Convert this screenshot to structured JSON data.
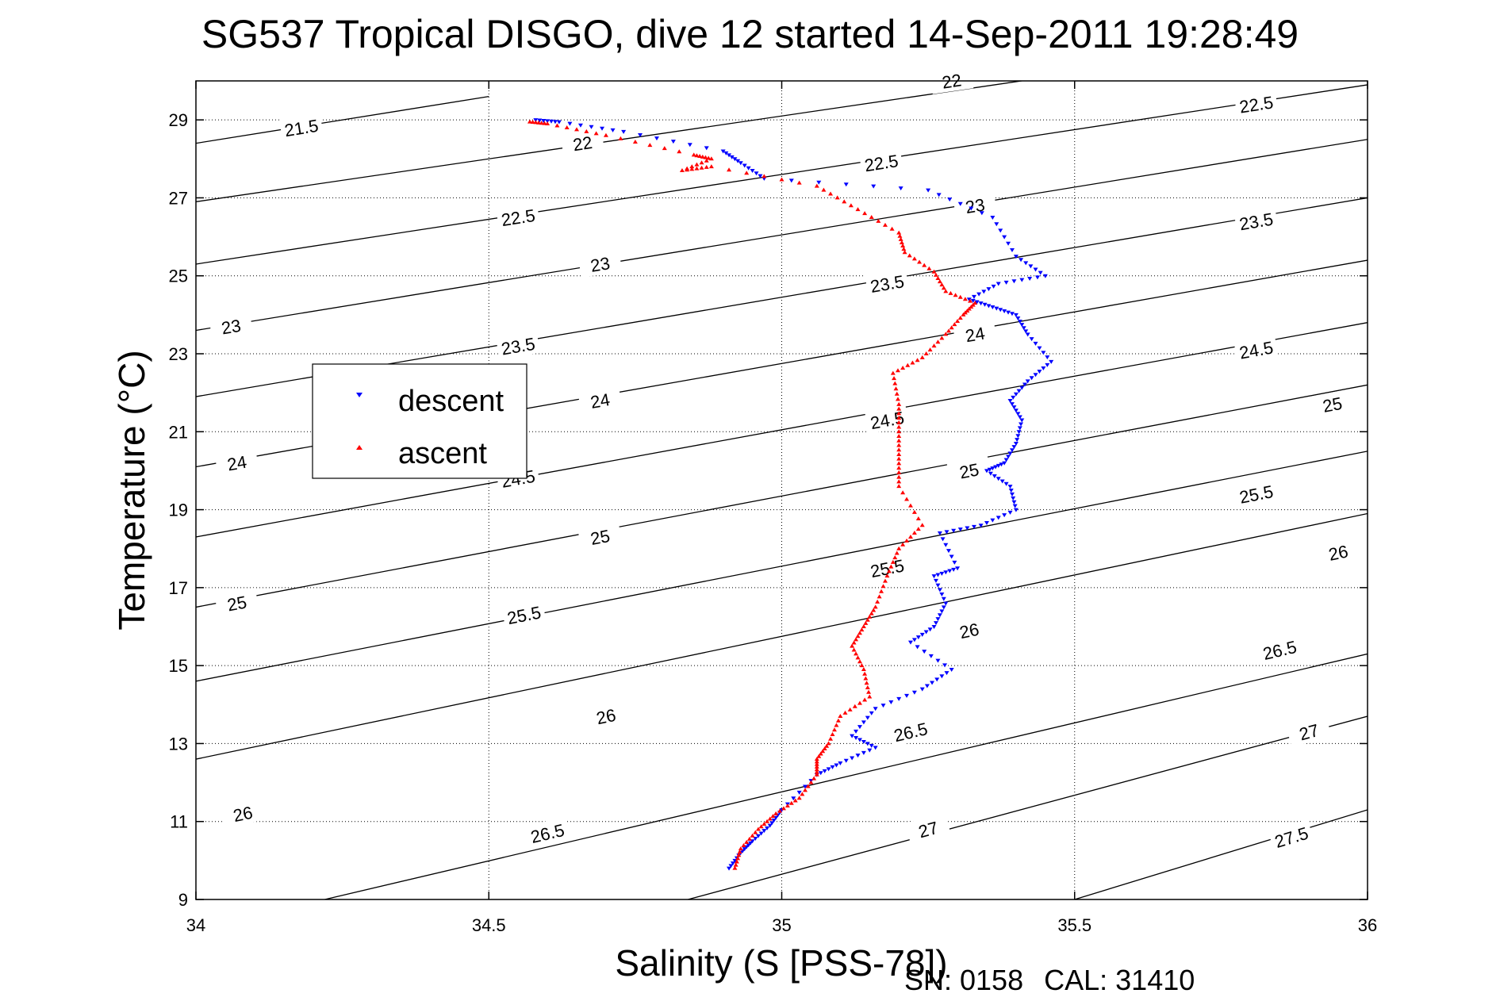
{
  "title": "SG537 Tropical DISGO, dive 12 started 14-Sep-2011 19:28:49",
  "footer": {
    "sn": "SN: 0158",
    "cal": "CAL: 31410"
  },
  "colors": {
    "descent": "#0000ff",
    "ascent": "#ff0000",
    "axis": "#000000",
    "grid": "#000000"
  },
  "chart_data": {
    "type": "scatter",
    "title": "SG537 Tropical DISGO, dive 12 started 14-Sep-2011 19:28:49",
    "xlabel": "Salinity (S [PSS-78])",
    "ylabel": "Temperature (°C)",
    "xlim": [
      34,
      36
    ],
    "ylim": [
      9,
      30
    ],
    "x_ticks": [
      34,
      34.5,
      35,
      35.5,
      36
    ],
    "x_tick_labels": [
      "34",
      "34.5",
      "35",
      "35.5",
      "36"
    ],
    "y_ticks": [
      9,
      11,
      13,
      15,
      17,
      19,
      21,
      23,
      25,
      27,
      29
    ],
    "y_tick_labels": [
      "9",
      "11",
      "13",
      "15",
      "17",
      "19",
      "21",
      "23",
      "25",
      "27",
      "29"
    ],
    "grid": true,
    "legend": {
      "position": "left",
      "entries": [
        "descent",
        "ascent"
      ]
    },
    "contours": [
      {
        "level": "21.5",
        "points": [
          [
            34,
            28.4
          ],
          [
            34.5,
            29.6
          ]
        ],
        "label_at": [
          34.18,
          28.8
        ]
      },
      {
        "level": "22",
        "points": [
          [
            34,
            26.9
          ],
          [
            36,
            31.3
          ]
        ],
        "label_at": [
          34.66,
          28.4
        ]
      },
      {
        "level": "22",
        "points": [
          [
            34,
            26.9
          ],
          [
            36,
            31.3
          ]
        ],
        "label_at": [
          35.29,
          30.0
        ]
      },
      {
        "level": "22.5",
        "points": [
          [
            34,
            25.3
          ],
          [
            36,
            29.9
          ]
        ],
        "label_at": [
          34.55,
          26.5
        ]
      },
      {
        "level": "22.5",
        "points": [
          [
            34,
            25.3
          ],
          [
            36,
            29.9
          ]
        ],
        "label_at": [
          35.17,
          27.9
        ]
      },
      {
        "level": "22.5",
        "points": [
          [
            34,
            25.3
          ],
          [
            36,
            29.9
          ]
        ],
        "label_at": [
          35.81,
          29.4
        ]
      },
      {
        "level": "23",
        "points": [
          [
            34,
            23.6
          ],
          [
            36,
            28.5
          ]
        ],
        "label_at": [
          34.06,
          23.7
        ]
      },
      {
        "level": "23",
        "points": [
          [
            34,
            23.6
          ],
          [
            36,
            28.5
          ]
        ],
        "label_at": [
          34.69,
          25.3
        ]
      },
      {
        "level": "23",
        "points": [
          [
            34,
            23.6
          ],
          [
            36,
            28.5
          ]
        ],
        "label_at": [
          35.33,
          26.8
        ]
      },
      {
        "level": "23.5",
        "points": [
          [
            34,
            21.9
          ],
          [
            36,
            27.0
          ]
        ],
        "label_at": [
          34.55,
          23.2
        ]
      },
      {
        "level": "23.5",
        "points": [
          [
            34,
            21.9
          ],
          [
            36,
            27.0
          ]
        ],
        "label_at": [
          35.18,
          24.8
        ]
      },
      {
        "level": "23.5",
        "points": [
          [
            34,
            21.9
          ],
          [
            36,
            27.0
          ]
        ],
        "label_at": [
          35.81,
          26.4
        ]
      },
      {
        "level": "24",
        "points": [
          [
            34,
            20.1
          ],
          [
            36,
            25.4
          ]
        ],
        "label_at": [
          34.07,
          20.2
        ]
      },
      {
        "level": "24",
        "points": [
          [
            34,
            20.1
          ],
          [
            36,
            25.4
          ]
        ],
        "label_at": [
          34.69,
          21.8
        ]
      },
      {
        "level": "24",
        "points": [
          [
            34,
            20.1
          ],
          [
            36,
            25.4
          ]
        ],
        "label_at": [
          35.33,
          23.5
        ]
      },
      {
        "level": "24.5",
        "points": [
          [
            34,
            18.3
          ],
          [
            36,
            23.8
          ]
        ],
        "label_at": [
          34.55,
          19.8
        ]
      },
      {
        "level": "24.5",
        "points": [
          [
            34,
            18.3
          ],
          [
            36,
            23.8
          ]
        ],
        "label_at": [
          35.18,
          21.3
        ]
      },
      {
        "level": "24.5",
        "points": [
          [
            34,
            18.3
          ],
          [
            36,
            23.8
          ]
        ],
        "label_at": [
          35.81,
          23.1
        ]
      },
      {
        "level": "25",
        "points": [
          [
            34,
            16.5
          ],
          [
            36,
            22.2
          ]
        ],
        "label_at": [
          34.07,
          16.6
        ]
      },
      {
        "level": "25",
        "points": [
          [
            34,
            16.5
          ],
          [
            36,
            22.2
          ]
        ],
        "label_at": [
          34.69,
          18.3
        ]
      },
      {
        "level": "25",
        "points": [
          [
            34,
            16.5
          ],
          [
            36,
            22.2
          ]
        ],
        "label_at": [
          35.32,
          20.0
        ]
      },
      {
        "level": "25",
        "points": [
          [
            34,
            16.5
          ],
          [
            36,
            22.2
          ]
        ],
        "label_at": [
          35.94,
          21.7
        ]
      },
      {
        "level": "25.5",
        "points": [
          [
            34,
            14.6
          ],
          [
            36,
            20.5
          ]
        ],
        "label_at": [
          34.56,
          16.3
        ]
      },
      {
        "level": "25.5",
        "points": [
          [
            34,
            14.6
          ],
          [
            36,
            20.5
          ]
        ],
        "label_at": [
          35.18,
          17.5
        ]
      },
      {
        "level": "25.5",
        "points": [
          [
            34,
            14.6
          ],
          [
            36,
            20.5
          ]
        ],
        "label_at": [
          35.81,
          19.4
        ]
      },
      {
        "level": "26",
        "points": [
          [
            34,
            12.6
          ],
          [
            36,
            18.9
          ]
        ],
        "label_at": [
          34.08,
          11.2
        ]
      },
      {
        "level": "26",
        "points": [
          [
            34,
            12.6
          ],
          [
            36,
            18.9
          ]
        ],
        "label_at": [
          34.7,
          13.7
        ]
      },
      {
        "level": "26",
        "points": [
          [
            34,
            12.6
          ],
          [
            36,
            18.9
          ]
        ],
        "label_at": [
          35.32,
          15.9
        ]
      },
      {
        "level": "26",
        "points": [
          [
            34,
            12.6
          ],
          [
            36,
            18.9
          ]
        ],
        "label_at": [
          35.95,
          17.9
        ]
      },
      {
        "level": "26.5",
        "points": [
          [
            34.22,
            9
          ],
          [
            36,
            15.3
          ]
        ],
        "label_at": [
          34.6,
          10.7
        ]
      },
      {
        "level": "26.5",
        "points": [
          [
            34.22,
            9
          ],
          [
            36,
            15.3
          ]
        ],
        "label_at": [
          35.22,
          13.3
        ]
      },
      {
        "level": "26.5",
        "points": [
          [
            34.22,
            9
          ],
          [
            36,
            15.3
          ]
        ],
        "label_at": [
          35.85,
          15.4
        ]
      },
      {
        "level": "27",
        "points": [
          [
            34.84,
            9
          ],
          [
            36,
            13.7
          ]
        ],
        "label_at": [
          35.25,
          10.8
        ]
      },
      {
        "level": "27",
        "points": [
          [
            34.84,
            9
          ],
          [
            36,
            13.7
          ]
        ],
        "label_at": [
          35.9,
          13.3
        ]
      },
      {
        "level": "27.5",
        "points": [
          [
            35.5,
            9
          ],
          [
            36,
            11.3
          ]
        ],
        "label_at": [
          35.87,
          10.6
        ]
      }
    ],
    "series": [
      {
        "name": "descent",
        "marker": "down-triangle",
        "points": [
          [
            34.58,
            29.0
          ],
          [
            34.62,
            28.95
          ],
          [
            34.73,
            28.7
          ],
          [
            34.9,
            28.2
          ],
          [
            34.93,
            27.9
          ],
          [
            34.97,
            27.5
          ],
          [
            35.25,
            27.2
          ],
          [
            35.36,
            26.5
          ],
          [
            35.4,
            25.5
          ],
          [
            35.45,
            25.0
          ],
          [
            35.37,
            24.8
          ],
          [
            35.32,
            24.4
          ],
          [
            35.36,
            24.2
          ],
          [
            35.4,
            24.0
          ],
          [
            35.42,
            23.5
          ],
          [
            35.46,
            22.8
          ],
          [
            35.42,
            22.3
          ],
          [
            35.39,
            21.8
          ],
          [
            35.41,
            21.3
          ],
          [
            35.4,
            20.7
          ],
          [
            35.38,
            20.2
          ],
          [
            35.35,
            20.0
          ],
          [
            35.39,
            19.6
          ],
          [
            35.4,
            19.0
          ],
          [
            35.34,
            18.6
          ],
          [
            35.27,
            18.4
          ],
          [
            35.3,
            17.5
          ],
          [
            35.26,
            17.3
          ],
          [
            35.28,
            16.6
          ],
          [
            35.26,
            16.0
          ],
          [
            35.22,
            15.6
          ],
          [
            35.29,
            14.9
          ],
          [
            35.24,
            14.4
          ],
          [
            35.16,
            13.9
          ],
          [
            35.12,
            13.2
          ],
          [
            35.16,
            12.9
          ],
          [
            35.1,
            12.5
          ],
          [
            35.06,
            12.2
          ],
          [
            35.0,
            11.3
          ],
          [
            34.98,
            10.9
          ],
          [
            34.95,
            10.5
          ],
          [
            34.93,
            10.2
          ],
          [
            34.91,
            9.8
          ]
        ]
      },
      {
        "name": "ascent",
        "marker": "up-triangle",
        "points": [
          [
            34.57,
            28.95
          ],
          [
            34.6,
            28.9
          ],
          [
            34.7,
            28.6
          ],
          [
            34.85,
            28.1
          ],
          [
            34.88,
            28.0
          ],
          [
            34.83,
            27.7
          ],
          [
            34.88,
            27.8
          ],
          [
            35.06,
            27.3
          ],
          [
            35.13,
            26.7
          ],
          [
            35.2,
            26.1
          ],
          [
            35.21,
            25.6
          ],
          [
            35.26,
            25.1
          ],
          [
            35.28,
            24.6
          ],
          [
            35.33,
            24.3
          ],
          [
            35.31,
            24.0
          ],
          [
            35.28,
            23.5
          ],
          [
            35.24,
            22.9
          ],
          [
            35.19,
            22.5
          ],
          [
            35.2,
            21.7
          ],
          [
            35.2,
            21.0
          ],
          [
            35.2,
            20.3
          ],
          [
            35.2,
            19.6
          ],
          [
            35.24,
            18.6
          ],
          [
            35.2,
            18.0
          ],
          [
            35.18,
            17.3
          ],
          [
            35.16,
            16.5
          ],
          [
            35.14,
            16.0
          ],
          [
            35.12,
            15.5
          ],
          [
            35.14,
            14.9
          ],
          [
            35.15,
            14.2
          ],
          [
            35.1,
            13.7
          ],
          [
            35.08,
            13.0
          ],
          [
            35.06,
            12.6
          ],
          [
            35.06,
            12.2
          ],
          [
            35.03,
            11.6
          ],
          [
            34.99,
            11.2
          ],
          [
            34.96,
            10.8
          ],
          [
            34.93,
            10.3
          ],
          [
            34.92,
            9.8
          ]
        ]
      }
    ]
  }
}
